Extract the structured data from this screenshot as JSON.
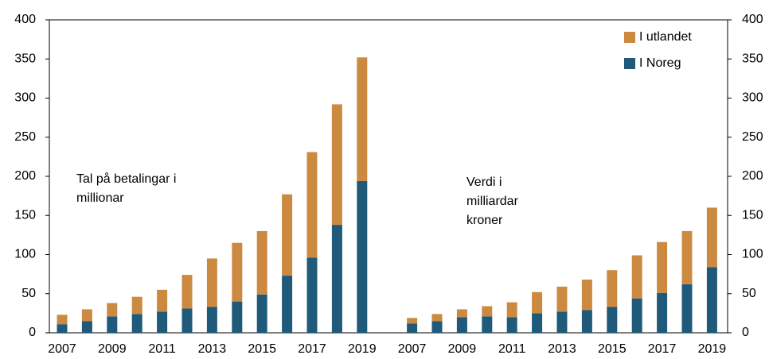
{
  "chart_data": [
    {
      "type": "bar",
      "stacked": true,
      "annotation": [
        "Tal på betalingar i",
        "millionar"
      ],
      "categories": [
        "2007",
        null,
        "2009",
        null,
        "2011",
        null,
        "2013",
        null,
        "2015",
        null,
        "2017",
        null,
        "2019"
      ],
      "series": [
        {
          "name": "I utlandet",
          "color": "#cc8a41",
          "values": [
            12,
            15,
            17,
            22,
            28,
            43,
            62,
            75,
            81,
            104,
            135,
            154,
            158
          ]
        },
        {
          "name": "I Noreg",
          "color": "#1f5a7a",
          "values": [
            11,
            15,
            21,
            24,
            27,
            31,
            33,
            40,
            49,
            73,
            96,
            138,
            194
          ]
        }
      ],
      "ylim": [
        0,
        400
      ],
      "yticks": [
        0,
        50,
        100,
        150,
        200,
        250,
        300,
        350,
        400
      ],
      "legend": "upper right"
    },
    {
      "type": "bar",
      "stacked": true,
      "annotation": [
        "Verdi i",
        "milliardar",
        "kroner"
      ],
      "categories": [
        "2007",
        null,
        "2009",
        null,
        "2011",
        null,
        "2013",
        null,
        "2015",
        null,
        "2017",
        null,
        "2019"
      ],
      "series": [
        {
          "values": [
            7,
            9,
            10,
            13,
            19,
            27,
            32,
            39,
            47,
            55,
            65,
            68,
            76
          ]
        },
        {
          "values": [
            12,
            15,
            20,
            21,
            20,
            25,
            27,
            29,
            33,
            44,
            51,
            62,
            84
          ]
        }
      ],
      "ylim": [
        0,
        400
      ],
      "yticks": [
        0,
        50,
        100,
        150,
        200,
        250,
        300,
        350,
        400
      ]
    }
  ]
}
